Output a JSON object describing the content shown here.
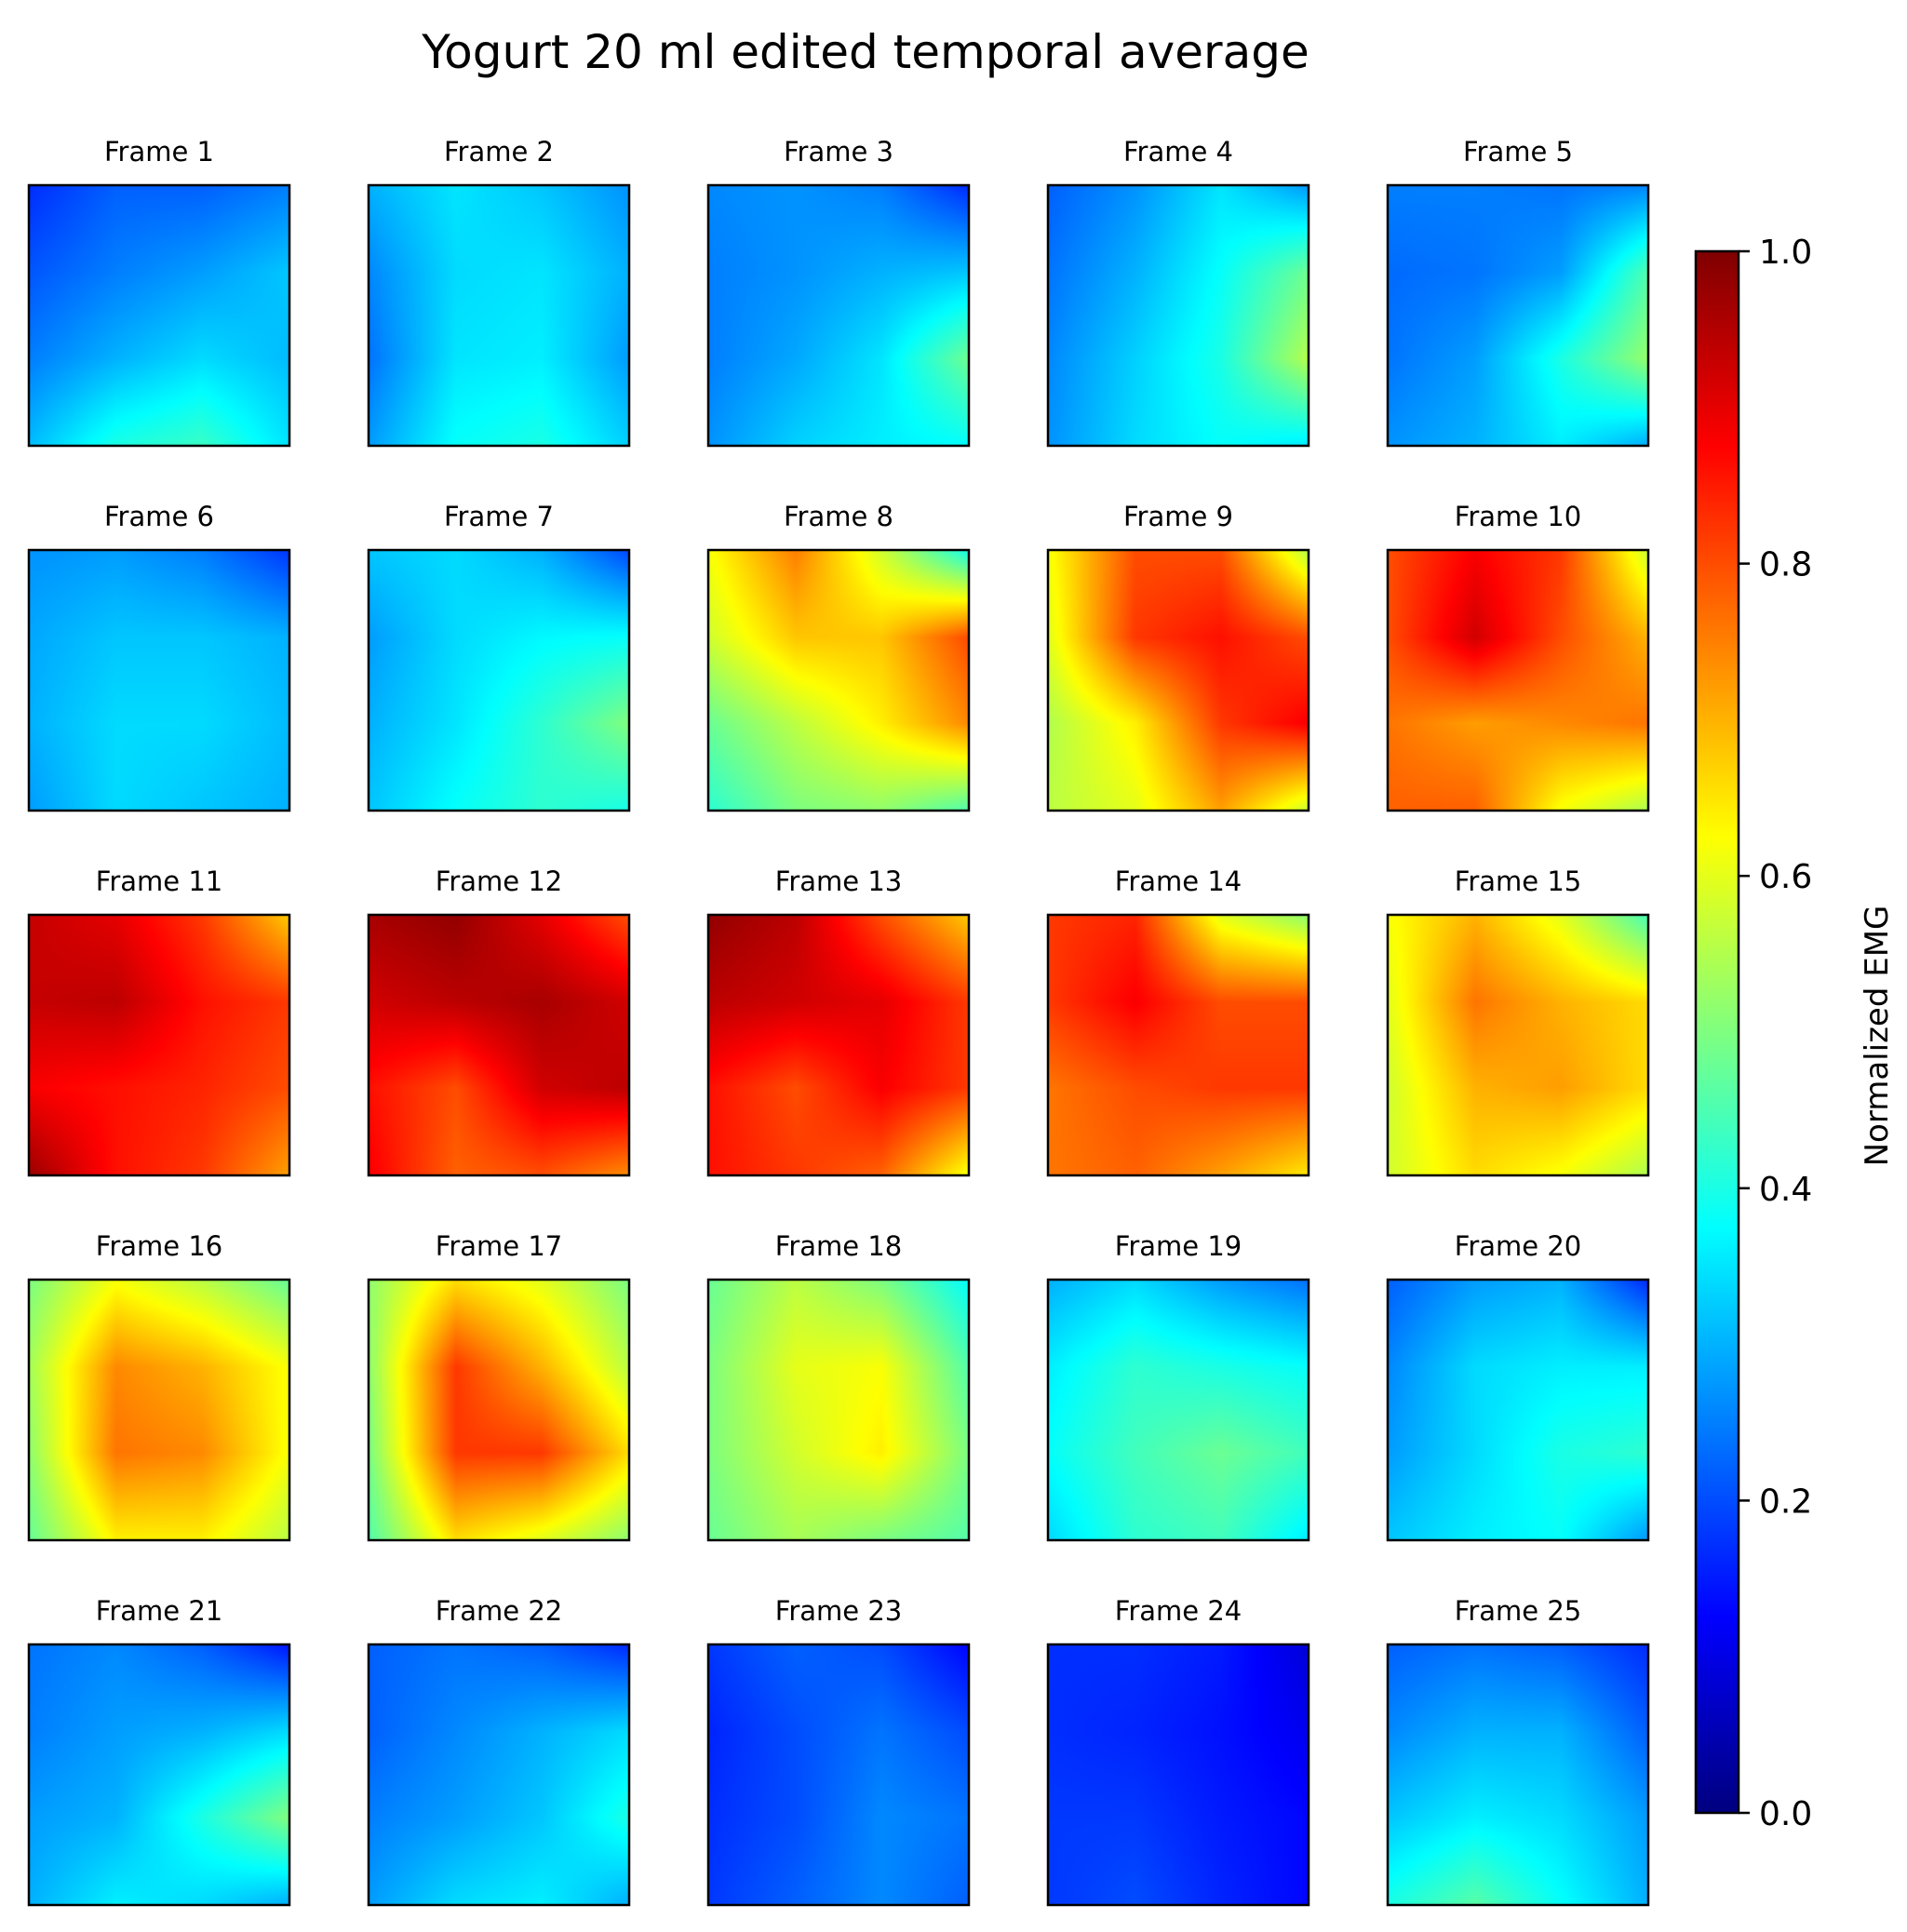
{
  "chart_data": {
    "type": "heatmap",
    "title": "Yogurt 20 ml edited temporal average",
    "colorbar": {
      "label": "Normalized EMG",
      "range": [
        0.0,
        1.0
      ],
      "ticks": [
        "0.0",
        "0.2",
        "0.4",
        "0.6",
        "0.8",
        "1.0"
      ],
      "colormap": "jet",
      "stops": [
        "#00007f",
        "#0000ff",
        "#007fff",
        "#00ffff",
        "#7fff7f",
        "#ffff00",
        "#ff7f00",
        "#ff0000",
        "#7f0000"
      ]
    },
    "grid_rows": 5,
    "grid_cols": 5,
    "frames": [
      {
        "label": "Frame 1",
        "values": [
          [
            0.17,
            0.22,
            0.22,
            0.25
          ],
          [
            0.21,
            0.25,
            0.28,
            0.32
          ],
          [
            0.25,
            0.3,
            0.34,
            0.31
          ],
          [
            0.31,
            0.4,
            0.43,
            0.35
          ]
        ]
      },
      {
        "label": "Frame 2",
        "values": [
          [
            0.3,
            0.35,
            0.32,
            0.27
          ],
          [
            0.26,
            0.34,
            0.35,
            0.3
          ],
          [
            0.24,
            0.35,
            0.36,
            0.28
          ],
          [
            0.28,
            0.38,
            0.4,
            0.33
          ]
        ]
      },
      {
        "label": "Frame 3",
        "values": [
          [
            0.26,
            0.27,
            0.25,
            0.17
          ],
          [
            0.25,
            0.27,
            0.3,
            0.32
          ],
          [
            0.25,
            0.29,
            0.35,
            0.48
          ],
          [
            0.27,
            0.33,
            0.36,
            0.38
          ]
        ]
      },
      {
        "label": "Frame 4",
        "values": [
          [
            0.22,
            0.27,
            0.35,
            0.28
          ],
          [
            0.24,
            0.3,
            0.38,
            0.48
          ],
          [
            0.26,
            0.33,
            0.4,
            0.55
          ],
          [
            0.27,
            0.34,
            0.38,
            0.36
          ]
        ]
      },
      {
        "label": "Frame 5",
        "values": [
          [
            0.25,
            0.25,
            0.24,
            0.26
          ],
          [
            0.23,
            0.24,
            0.28,
            0.45
          ],
          [
            0.24,
            0.28,
            0.4,
            0.52
          ],
          [
            0.27,
            0.3,
            0.36,
            0.3
          ]
        ]
      },
      {
        "label": "Frame 6",
        "values": [
          [
            0.27,
            0.28,
            0.25,
            0.18
          ],
          [
            0.29,
            0.32,
            0.32,
            0.3
          ],
          [
            0.3,
            0.34,
            0.34,
            0.31
          ],
          [
            0.28,
            0.34,
            0.32,
            0.3
          ]
        ]
      },
      {
        "label": "Frame 7",
        "values": [
          [
            0.32,
            0.34,
            0.3,
            0.2
          ],
          [
            0.28,
            0.34,
            0.37,
            0.38
          ],
          [
            0.3,
            0.35,
            0.42,
            0.5
          ],
          [
            0.32,
            0.38,
            0.42,
            0.4
          ]
        ]
      },
      {
        "label": "Frame 8",
        "values": [
          [
            0.62,
            0.75,
            0.58,
            0.4
          ],
          [
            0.58,
            0.68,
            0.68,
            0.8
          ],
          [
            0.48,
            0.56,
            0.64,
            0.74
          ],
          [
            0.42,
            0.5,
            0.52,
            0.46
          ]
        ]
      },
      {
        "label": "Frame 9",
        "values": [
          [
            0.62,
            0.8,
            0.8,
            0.56
          ],
          [
            0.6,
            0.82,
            0.86,
            0.8
          ],
          [
            0.55,
            0.64,
            0.82,
            0.88
          ],
          [
            0.56,
            0.6,
            0.72,
            0.58
          ]
        ]
      },
      {
        "label": "Frame 10",
        "values": [
          [
            0.8,
            0.88,
            0.82,
            0.58
          ],
          [
            0.8,
            0.92,
            0.8,
            0.7
          ],
          [
            0.76,
            0.72,
            0.74,
            0.76
          ],
          [
            0.78,
            0.78,
            0.62,
            0.55
          ]
        ]
      },
      {
        "label": "Frame 11",
        "values": [
          [
            0.93,
            0.9,
            0.82,
            0.68
          ],
          [
            0.93,
            0.94,
            0.86,
            0.82
          ],
          [
            0.88,
            0.86,
            0.84,
            0.8
          ],
          [
            0.97,
            0.86,
            0.82,
            0.72
          ]
        ]
      },
      {
        "label": "Frame 12",
        "values": [
          [
            0.96,
            0.98,
            0.9,
            0.8
          ],
          [
            0.92,
            0.94,
            0.96,
            0.92
          ],
          [
            0.86,
            0.8,
            0.92,
            0.94
          ],
          [
            0.88,
            0.78,
            0.8,
            0.74
          ]
        ]
      },
      {
        "label": "Frame 13",
        "values": [
          [
            0.98,
            0.94,
            0.8,
            0.68
          ],
          [
            0.94,
            0.92,
            0.9,
            0.82
          ],
          [
            0.86,
            0.8,
            0.88,
            0.82
          ],
          [
            0.86,
            0.82,
            0.78,
            0.62
          ]
        ]
      },
      {
        "label": "Frame 14",
        "values": [
          [
            0.82,
            0.84,
            0.6,
            0.52
          ],
          [
            0.82,
            0.88,
            0.8,
            0.8
          ],
          [
            0.76,
            0.8,
            0.82,
            0.82
          ],
          [
            0.76,
            0.78,
            0.72,
            0.65
          ]
        ]
      },
      {
        "label": "Frame 15",
        "values": [
          [
            0.62,
            0.7,
            0.6,
            0.45
          ],
          [
            0.6,
            0.76,
            0.7,
            0.66
          ],
          [
            0.58,
            0.7,
            0.72,
            0.66
          ],
          [
            0.58,
            0.66,
            0.62,
            0.55
          ]
        ]
      },
      {
        "label": "Frame 16",
        "values": [
          [
            0.5,
            0.62,
            0.56,
            0.48
          ],
          [
            0.54,
            0.74,
            0.7,
            0.62
          ],
          [
            0.52,
            0.76,
            0.74,
            0.62
          ],
          [
            0.48,
            0.64,
            0.64,
            0.56
          ]
        ]
      },
      {
        "label": "Frame 17",
        "values": [
          [
            0.52,
            0.66,
            0.6,
            0.5
          ],
          [
            0.52,
            0.82,
            0.7,
            0.56
          ],
          [
            0.5,
            0.82,
            0.82,
            0.66
          ],
          [
            0.46,
            0.66,
            0.6,
            0.52
          ]
        ]
      },
      {
        "label": "Frame 18",
        "values": [
          [
            0.48,
            0.56,
            0.5,
            0.38
          ],
          [
            0.5,
            0.6,
            0.62,
            0.46
          ],
          [
            0.5,
            0.58,
            0.64,
            0.5
          ],
          [
            0.48,
            0.54,
            0.5,
            0.46
          ]
        ]
      },
      {
        "label": "Frame 19",
        "values": [
          [
            0.3,
            0.34,
            0.28,
            0.24
          ],
          [
            0.36,
            0.42,
            0.4,
            0.38
          ],
          [
            0.38,
            0.44,
            0.48,
            0.44
          ],
          [
            0.34,
            0.42,
            0.44,
            0.36
          ]
        ]
      },
      {
        "label": "Frame 20",
        "values": [
          [
            0.22,
            0.28,
            0.3,
            0.17
          ],
          [
            0.26,
            0.34,
            0.36,
            0.36
          ],
          [
            0.28,
            0.34,
            0.4,
            0.42
          ],
          [
            0.32,
            0.36,
            0.38,
            0.28
          ]
        ]
      },
      {
        "label": "Frame 21",
        "values": [
          [
            0.24,
            0.26,
            0.22,
            0.15
          ],
          [
            0.25,
            0.28,
            0.3,
            0.34
          ],
          [
            0.28,
            0.3,
            0.4,
            0.5
          ],
          [
            0.3,
            0.36,
            0.34,
            0.3
          ]
        ]
      },
      {
        "label": "Frame 22",
        "values": [
          [
            0.22,
            0.24,
            0.22,
            0.17
          ],
          [
            0.22,
            0.26,
            0.3,
            0.34
          ],
          [
            0.25,
            0.28,
            0.32,
            0.4
          ],
          [
            0.28,
            0.34,
            0.36,
            0.3
          ]
        ]
      },
      {
        "label": "Frame 23",
        "values": [
          [
            0.18,
            0.22,
            0.2,
            0.13
          ],
          [
            0.16,
            0.2,
            0.24,
            0.2
          ],
          [
            0.17,
            0.2,
            0.26,
            0.24
          ],
          [
            0.18,
            0.22,
            0.26,
            0.22
          ]
        ]
      },
      {
        "label": "Frame 24",
        "values": [
          [
            0.17,
            0.17,
            0.15,
            0.09
          ],
          [
            0.17,
            0.16,
            0.14,
            0.11
          ],
          [
            0.18,
            0.18,
            0.15,
            0.13
          ],
          [
            0.18,
            0.2,
            0.16,
            0.13
          ]
        ]
      },
      {
        "label": "Frame 25",
        "values": [
          [
            0.22,
            0.24,
            0.22,
            0.17
          ],
          [
            0.26,
            0.3,
            0.3,
            0.22
          ],
          [
            0.32,
            0.36,
            0.34,
            0.28
          ],
          [
            0.4,
            0.46,
            0.38,
            0.3
          ]
        ]
      }
    ]
  }
}
